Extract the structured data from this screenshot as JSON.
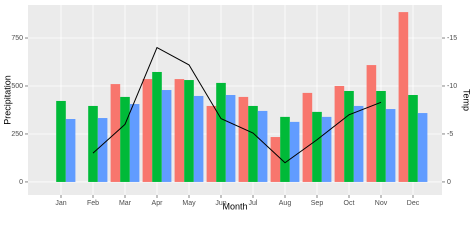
{
  "chart_data": {
    "type": "bar-line",
    "x_label": "Month",
    "y_label": "Precipitation",
    "y2_label": "Temp",
    "categories": [
      "Jan",
      "Feb",
      "Mar",
      "Apr",
      "May",
      "Jun",
      "Jul",
      "Aug",
      "Sep",
      "Oct",
      "Nov",
      "Dec"
    ],
    "series": [
      {
        "color": "#f8766d",
        "values": [
          null,
          null,
          510,
          536,
          536,
          396,
          443,
          234,
          464,
          500,
          609,
          885
        ]
      },
      {
        "color": "#00ba38",
        "values": [
          422,
          396,
          443,
          573,
          531,
          516,
          396,
          339,
          365,
          474,
          474,
          453
        ]
      },
      {
        "color": "#619cff",
        "values": [
          328,
          333,
          406,
          479,
          448,
          453,
          370,
          313,
          339,
          396,
          380,
          359
        ]
      },
      {
        "color": "#000000",
        "axis": "y2",
        "line": true,
        "values": [
          null,
          -3.0,
          -6.0,
          -14.0,
          -12.2,
          -6.6,
          -5.1,
          -2.0,
          -4.4,
          -7.0,
          -8.3,
          null
        ]
      }
    ],
    "ylim": [
      -68,
      922
    ],
    "yticks": [
      0,
      250,
      500,
      750
    ],
    "y2lim": [
      1.36,
      -18.44
    ],
    "y2ticks": [
      0,
      -5,
      -10,
      -15
    ],
    "grid": true
  }
}
